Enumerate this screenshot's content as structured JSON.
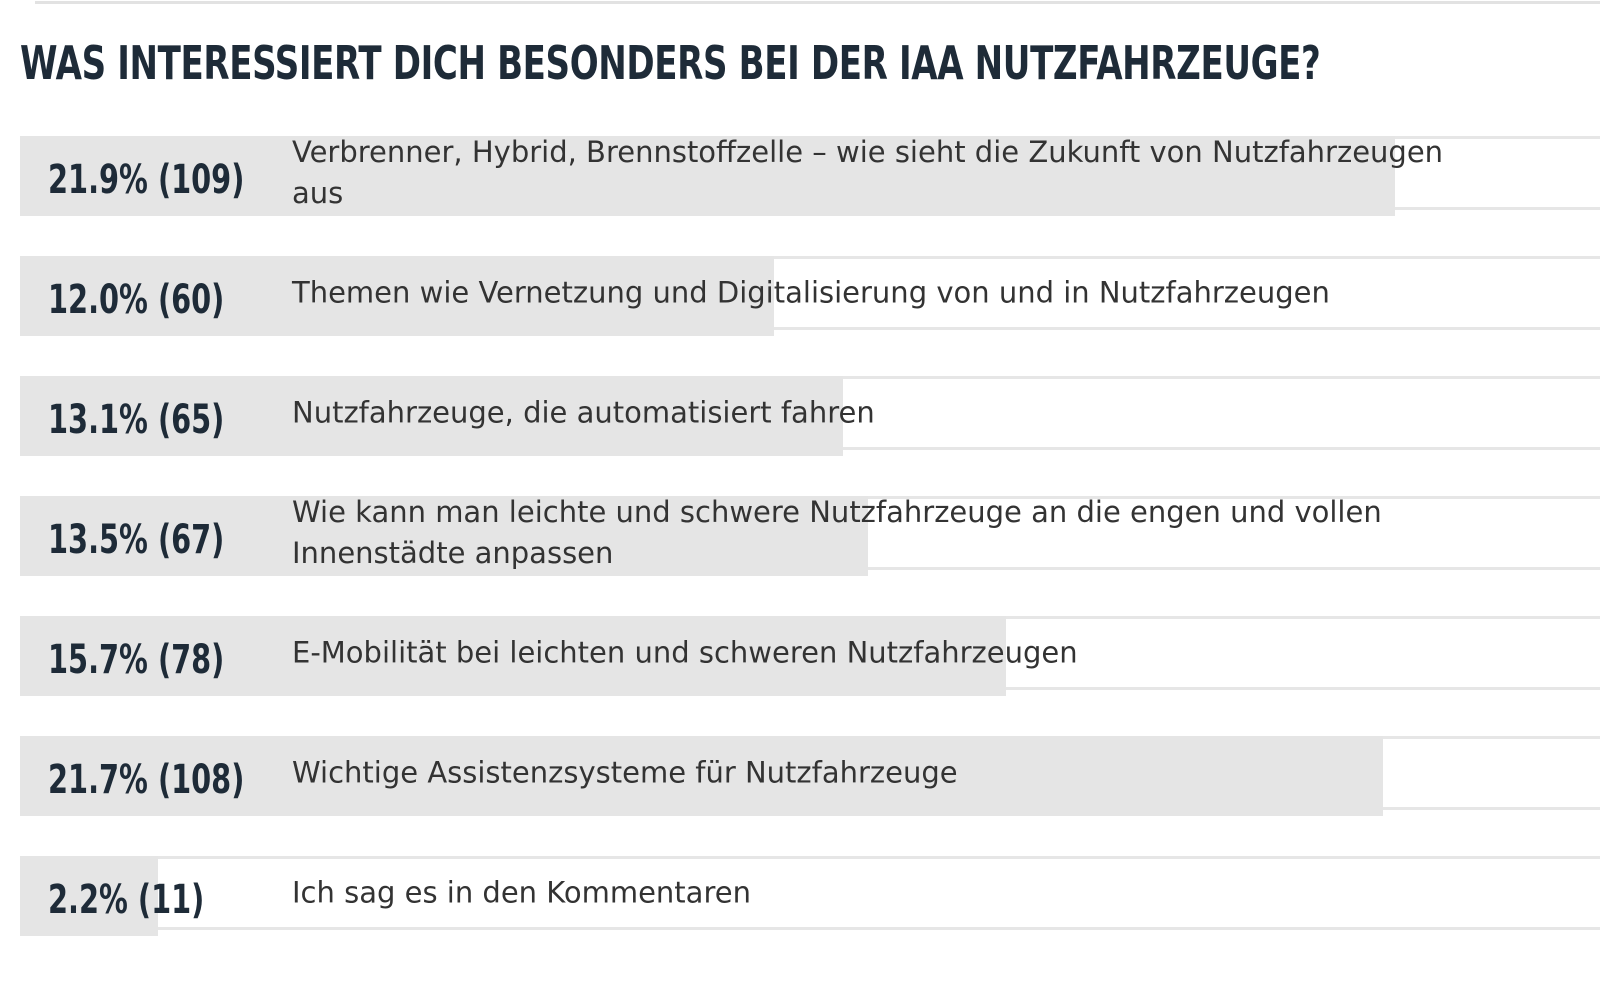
{
  "poll": {
    "title": "WAS INTERESSIERT DICH BESONDERS BEI DER IAA NUTZFAHRZEUGE?",
    "options": [
      {
        "result_label": "21.9% (109)",
        "percent": 21.9,
        "label": "Verbrenner, Hybrid, Brennstoffzelle – wie sieht die Zukunft von Nutzfahrzeugen aus"
      },
      {
        "result_label": "12.0% (60)",
        "percent": 12.0,
        "label": "Themen wie Vernetzung und Digitalisierung von und in Nutzfahrzeugen"
      },
      {
        "result_label": "13.1% (65)",
        "percent": 13.1,
        "label": "Nutzfahrzeuge, die automatisiert fahren"
      },
      {
        "result_label": "13.5% (67)",
        "percent": 13.5,
        "label": "Wie kann man leichte und schwere Nutzfahrzeuge an die engen und vollen Innenstädte anpassen"
      },
      {
        "result_label": "15.7% (78)",
        "percent": 15.7,
        "label": "E-Mobilität bei leichten und schweren Nutzfahrzeugen"
      },
      {
        "result_label": "21.7% (108)",
        "percent": 21.7,
        "label": "Wichtige Assistenzsysteme für Nutzfahrzeuge"
      },
      {
        "result_label": "2.2% (11)",
        "percent": 2.2,
        "label": "Ich sag es in den Kommentaren"
      }
    ]
  }
}
